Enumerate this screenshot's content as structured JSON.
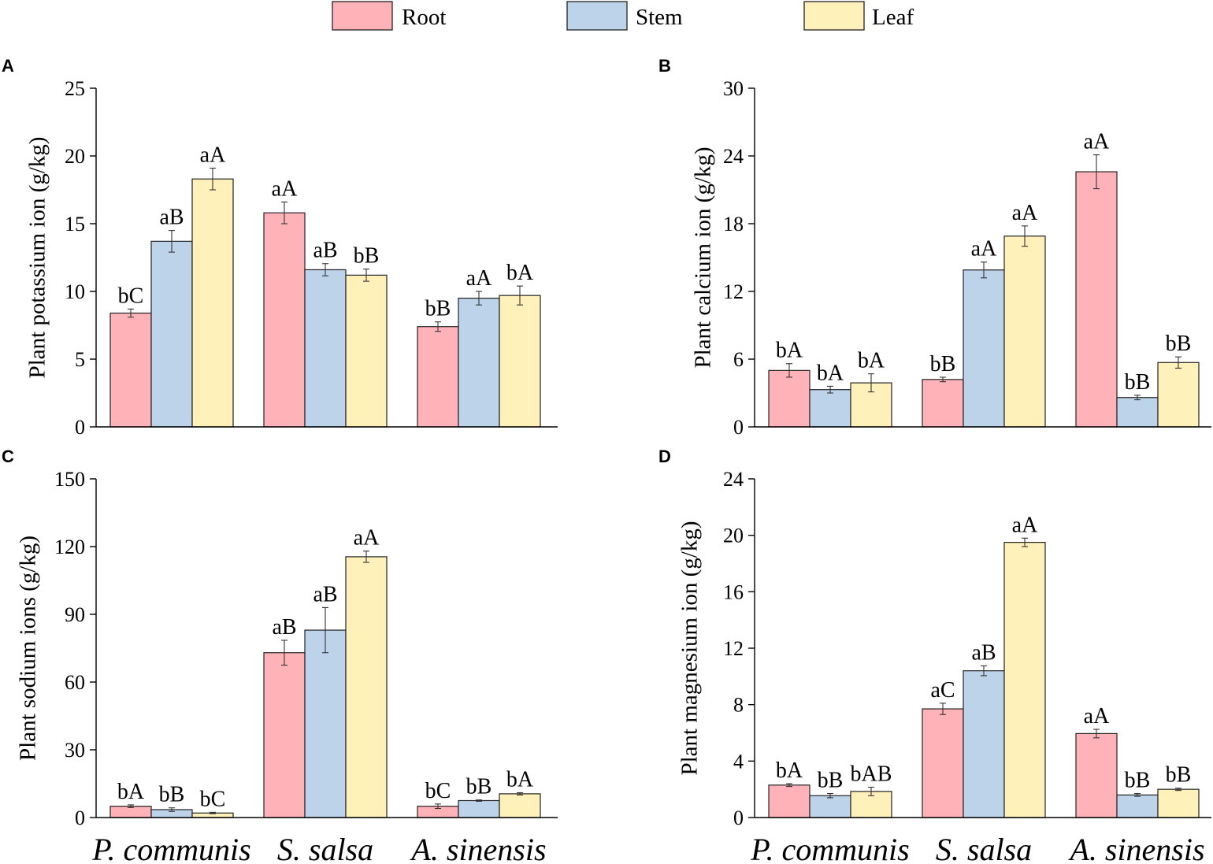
{
  "legend": [
    {
      "name": "Root",
      "color": "#FFB3B8"
    },
    {
      "name": "Stem",
      "color": "#BDD3EA"
    },
    {
      "name": "Leaf",
      "color": "#FFF1B9"
    }
  ],
  "x_category_labels": [
    "P. communis",
    "S. salsa",
    "A. sinensis"
  ],
  "chart_data": [
    {
      "type": "bar",
      "panel": "A",
      "ylabel": "Plant potassium ion (g/kg)",
      "ylim": [
        0,
        25
      ],
      "yticks": [
        0,
        5,
        10,
        15,
        20,
        25
      ],
      "categories": [
        "P. communis",
        "S. salsa",
        "A. sinensis"
      ],
      "series": [
        {
          "name": "Root",
          "values": [
            8.4,
            15.8,
            7.4
          ],
          "errors": [
            0.3,
            0.8,
            0.35
          ],
          "labels": [
            "bC",
            "aA",
            "bB"
          ]
        },
        {
          "name": "Stem",
          "values": [
            13.7,
            11.6,
            9.5
          ],
          "errors": [
            0.8,
            0.45,
            0.5
          ],
          "labels": [
            "aB",
            "aB",
            "aA"
          ]
        },
        {
          "name": "Leaf",
          "values": [
            18.3,
            11.2,
            9.7
          ],
          "errors": [
            0.8,
            0.45,
            0.7
          ],
          "labels": [
            "aA",
            "bB",
            "bA"
          ]
        }
      ]
    },
    {
      "type": "bar",
      "panel": "B",
      "ylabel": "Plant calcium ion (g/kg)",
      "ylim": [
        0,
        30
      ],
      "yticks": [
        0,
        6,
        12,
        18,
        24,
        30
      ],
      "categories": [
        "P. communis",
        "S. salsa",
        "A. sinensis"
      ],
      "series": [
        {
          "name": "Root",
          "values": [
            5.0,
            4.2,
            22.6
          ],
          "errors": [
            0.6,
            0.2,
            1.5
          ],
          "labels": [
            "bA",
            "bB",
            "aA"
          ]
        },
        {
          "name": "Stem",
          "values": [
            3.3,
            13.9,
            2.6
          ],
          "errors": [
            0.3,
            0.7,
            0.2
          ],
          "labels": [
            "bA",
            "aA",
            "bB"
          ]
        },
        {
          "name": "Leaf",
          "values": [
            3.9,
            16.9,
            5.7
          ],
          "errors": [
            0.8,
            0.9,
            0.5
          ],
          "labels": [
            "bA",
            "aA",
            "bB"
          ]
        }
      ]
    },
    {
      "type": "bar",
      "panel": "C",
      "ylabel": "Plant sodium ions (g/kg)",
      "ylim": [
        0,
        150
      ],
      "yticks": [
        0,
        30,
        60,
        90,
        120,
        150
      ],
      "categories": [
        "P. communis",
        "S. salsa",
        "A. sinensis"
      ],
      "series": [
        {
          "name": "Root",
          "values": [
            5.0,
            73.0,
            5.0
          ],
          "errors": [
            0.6,
            5.5,
            1.0
          ],
          "labels": [
            "bA",
            "aB",
            "bC"
          ]
        },
        {
          "name": "Stem",
          "values": [
            3.5,
            83.0,
            7.5
          ],
          "errors": [
            0.8,
            10.0,
            0.3
          ],
          "labels": [
            "bB",
            "aB",
            "bB"
          ]
        },
        {
          "name": "Leaf",
          "values": [
            2.0,
            115.5,
            10.5
          ],
          "errors": [
            0.3,
            2.5,
            0.5
          ],
          "labels": [
            "bC",
            "aA",
            "bA"
          ]
        }
      ]
    },
    {
      "type": "bar",
      "panel": "D",
      "ylabel": "Plant magnesium ion (g/kg)",
      "ylim": [
        0,
        24
      ],
      "yticks": [
        0,
        4,
        8,
        12,
        16,
        20,
        24
      ],
      "categories": [
        "P. communis",
        "S. salsa",
        "A. sinensis"
      ],
      "series": [
        {
          "name": "Root",
          "values": [
            2.3,
            7.7,
            5.95
          ],
          "errors": [
            0.1,
            0.4,
            0.3
          ],
          "labels": [
            "bA",
            "aC",
            "aA"
          ]
        },
        {
          "name": "Stem",
          "values": [
            1.55,
            10.4,
            1.6
          ],
          "errors": [
            0.15,
            0.35,
            0.1
          ],
          "labels": [
            "bB",
            "aB",
            "bB"
          ]
        },
        {
          "name": "Leaf",
          "values": [
            1.85,
            19.5,
            2.0
          ],
          "errors": [
            0.3,
            0.3,
            0.08
          ],
          "labels": [
            "bAB",
            "aA",
            "bB"
          ]
        }
      ]
    }
  ]
}
